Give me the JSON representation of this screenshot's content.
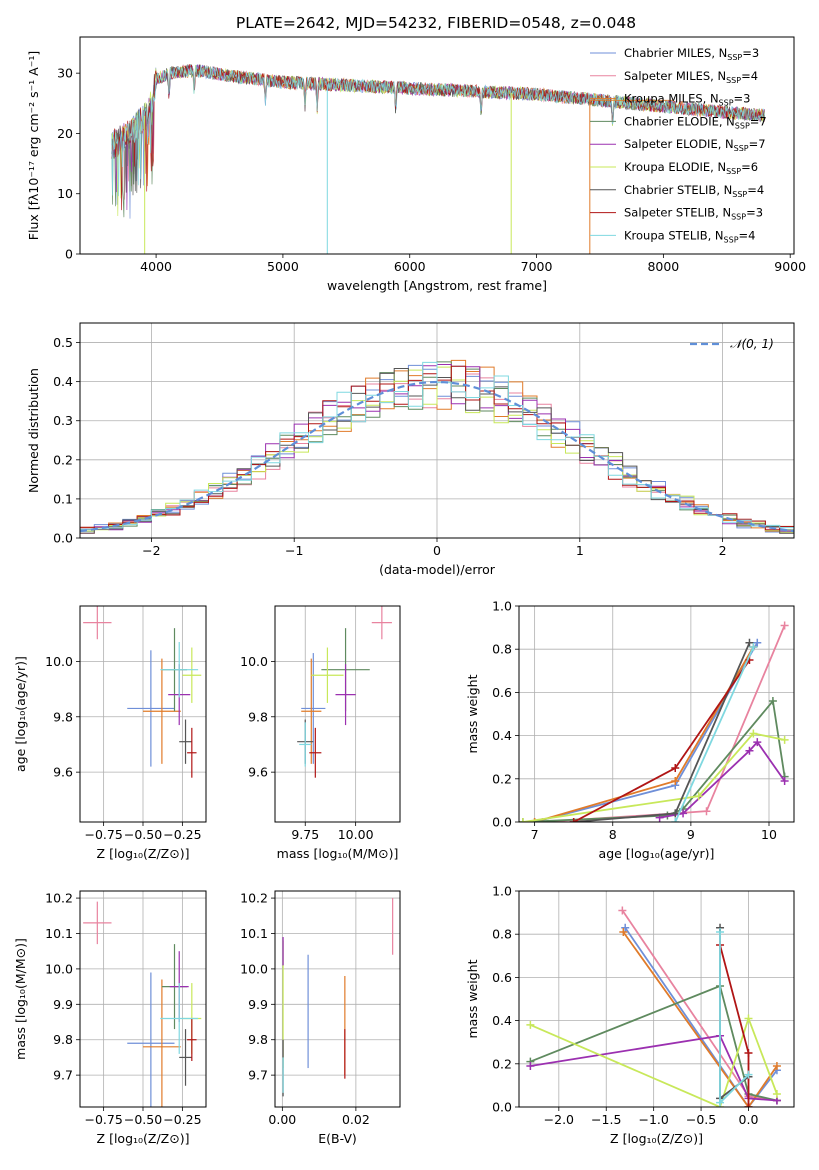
{
  "figure_title": "PLATE=2642, MJD=54232, FIBERID=0548, z=0.048",
  "colors": {
    "chabrier_miles": "#6f8fd8",
    "salpeter_miles": "#e8839f",
    "kroupa_miles": "#e07b2a",
    "chabrier_elodie": "#5f8a5f",
    "salpeter_elodie": "#9b30b0",
    "kroupa_elodie": "#c8e85a",
    "chabrier_stelib": "#555555",
    "salpeter_stelib": "#b01515",
    "kroupa_stelib": "#7fd8e0"
  },
  "chart_data": [
    {
      "id": "spectrum",
      "type": "line",
      "xlabel": "wavelength [Angstrom, rest frame]",
      "ylabel": "Flux [fλ10⁻¹⁷ erg cm⁻² s⁻¹ A⁻¹]",
      "xlim": [
        3400,
        9030
      ],
      "ylim": [
        0,
        36
      ],
      "xticks": [
        4000,
        5000,
        6000,
        7000,
        8000,
        9000
      ],
      "yticks": [
        0,
        10,
        20,
        30
      ],
      "legend_position": "top-right",
      "legend": [
        {
          "label": "Chabrier MILES, N",
          "sub": "SSP",
          "val": "=3",
          "color": "#6f8fd8"
        },
        {
          "label": "Salpeter MILES, N",
          "sub": "SSP",
          "val": "=4",
          "color": "#e8839f"
        },
        {
          "label": "Kroupa MILES, N",
          "sub": "SSP",
          "val": "=3",
          "color": "#e07b2a"
        },
        {
          "label": "Chabrier ELODIE, N",
          "sub": "SSP",
          "val": "=7",
          "color": "#5f8a5f"
        },
        {
          "label": "Salpeter ELODIE, N",
          "sub": "SSP",
          "val": "=7",
          "color": "#9b30b0"
        },
        {
          "label": "Kroupa ELODIE, N",
          "sub": "SSP",
          "val": "=6",
          "color": "#c8e85a"
        },
        {
          "label": "Chabrier STELIB, N",
          "sub": "SSP",
          "val": "=4",
          "color": "#555555"
        },
        {
          "label": "Salpeter STELIB, N",
          "sub": "SSP",
          "val": "=3",
          "color": "#b01515"
        },
        {
          "label": "Kroupa STELIB, N",
          "sub": "SSP",
          "val": "=4",
          "color": "#7fd8e0"
        }
      ],
      "spectrum_range": [
        3650,
        8800
      ],
      "continuum": [
        [
          3650,
          18
        ],
        [
          3800,
          20
        ],
        [
          3950,
          24
        ],
        [
          4000,
          29
        ],
        [
          4100,
          30
        ],
        [
          4300,
          30.5
        ],
        [
          4600,
          29.5
        ],
        [
          5000,
          28.5
        ],
        [
          5500,
          28
        ],
        [
          6000,
          27.5
        ],
        [
          6500,
          27
        ],
        [
          7000,
          26.5
        ],
        [
          7500,
          25.5
        ],
        [
          8000,
          24.5
        ],
        [
          8500,
          23.5
        ],
        [
          8800,
          23
        ]
      ],
      "dropouts": [
        {
          "x": 3910,
          "y": 0,
          "color": "#c8e85a"
        },
        {
          "x": 5350,
          "y": 0,
          "color": "#7fd8e0"
        },
        {
          "x": 6800,
          "y": 0,
          "color": "#c8e85a"
        },
        {
          "x": 7420,
          "y": 0,
          "color": "#e07b2a"
        }
      ]
    },
    {
      "id": "residuals",
      "type": "bar",
      "xlabel": "(data-model)/error",
      "ylabel": "Normed distribution",
      "xlim": [
        -2.5,
        2.5
      ],
      "ylim": [
        0,
        0.55
      ],
      "xticks": [
        -2,
        -1,
        0,
        1,
        2
      ],
      "yticks": [
        0.0,
        0.1,
        0.2,
        0.3,
        0.4,
        0.5
      ],
      "grid": true,
      "bin_width": 0.1,
      "bin_start": -2.5,
      "legend_position": "top-right",
      "gaussian": {
        "label": "𝒩(0, 1)",
        "mean": 0,
        "sigma": 1,
        "color": "#5f8fd8"
      },
      "histograms": [
        {
          "color": "#6f8fd8",
          "seed": 1
        },
        {
          "color": "#e8839f",
          "seed": 2
        },
        {
          "color": "#e07b2a",
          "seed": 3
        },
        {
          "color": "#5f8a5f",
          "seed": 4
        },
        {
          "color": "#9b30b0",
          "seed": 5
        },
        {
          "color": "#c8e85a",
          "seed": 6
        },
        {
          "color": "#555555",
          "seed": 7
        },
        {
          "color": "#b01515",
          "seed": 8
        },
        {
          "color": "#7fd8e0",
          "seed": 9
        }
      ]
    },
    {
      "id": "age_vs_z",
      "type": "scatter",
      "xlabel": "Z [log₁₀(Z/Z⊙)]",
      "ylabel": "age  [log₁₀(age/yr)]",
      "xlim": [
        -0.9,
        -0.1
      ],
      "ylim": [
        9.42,
        10.2
      ],
      "xticks": [
        -0.75,
        -0.5,
        -0.25
      ],
      "xticklabels": [
        "−0.75",
        "−0.50",
        "−0.25"
      ],
      "yticks": [
        9.6,
        9.8,
        10.0
      ],
      "grid": true,
      "points": [
        {
          "x": -0.79,
          "y": 10.14,
          "dx": 0.09,
          "dy": 0.06,
          "color": "#e8839f"
        },
        {
          "x": -0.45,
          "y": 9.83,
          "dx": 0.15,
          "dy": 0.21,
          "color": "#6f8fd8"
        },
        {
          "x": -0.38,
          "y": 9.82,
          "dx": 0.12,
          "dy": 0.19,
          "color": "#e07b2a"
        },
        {
          "x": -0.3,
          "y": 9.97,
          "dx": 0.08,
          "dy": 0.15,
          "color": "#5f8a5f"
        },
        {
          "x": -0.27,
          "y": 9.88,
          "dx": 0.07,
          "dy": 0.11,
          "color": "#9b30b0"
        },
        {
          "x": -0.19,
          "y": 9.95,
          "dx": 0.06,
          "dy": 0.1,
          "color": "#c8e85a"
        },
        {
          "x": -0.23,
          "y": 9.71,
          "dx": 0.04,
          "dy": 0.08,
          "color": "#555555"
        },
        {
          "x": -0.19,
          "y": 9.67,
          "dx": 0.03,
          "dy": 0.09,
          "color": "#b01515"
        },
        {
          "x": -0.27,
          "y": 9.97,
          "dx": 0.12,
          "dy": 0.1,
          "color": "#7fd8e0"
        }
      ]
    },
    {
      "id": "age_vs_mass",
      "type": "scatter",
      "xlabel": "mass [log₁₀(M/M⊙)]",
      "ylabel": "",
      "xlim": [
        9.6,
        10.22
      ],
      "ylim": [
        9.42,
        10.2
      ],
      "xticks": [
        9.75,
        10.0
      ],
      "xticklabels": [
        "9.75",
        "10.00"
      ],
      "yticks": [
        9.6,
        9.8,
        10.0
      ],
      "grid": true,
      "points": [
        {
          "x": 10.13,
          "y": 10.14,
          "dx": 0.05,
          "dy": 0.06,
          "color": "#e8839f"
        },
        {
          "x": 9.79,
          "y": 9.83,
          "dx": 0.06,
          "dy": 0.2,
          "color": "#6f8fd8"
        },
        {
          "x": 9.78,
          "y": 9.82,
          "dx": 0.05,
          "dy": 0.19,
          "color": "#e07b2a"
        },
        {
          "x": 9.95,
          "y": 9.97,
          "dx": 0.12,
          "dy": 0.15,
          "color": "#5f8a5f"
        },
        {
          "x": 9.95,
          "y": 9.88,
          "dx": 0.05,
          "dy": 0.11,
          "color": "#9b30b0"
        },
        {
          "x": 9.86,
          "y": 9.95,
          "dx": 0.08,
          "dy": 0.1,
          "color": "#c8e85a"
        },
        {
          "x": 9.75,
          "y": 9.71,
          "dx": 0.04,
          "dy": 0.08,
          "color": "#555555"
        },
        {
          "x": 9.8,
          "y": 9.67,
          "dx": 0.03,
          "dy": 0.09,
          "color": "#b01515"
        },
        {
          "x": 9.75,
          "y": 9.7,
          "dx": 0.03,
          "dy": 0.08,
          "color": "#7fd8e0"
        }
      ]
    },
    {
      "id": "weight_vs_age",
      "type": "line",
      "xlabel": "age  [log₁₀(age/yr)]",
      "ylabel": "mass weight",
      "xlim": [
        6.8,
        10.32
      ],
      "ylim": [
        0,
        1.0
      ],
      "xticks": [
        7,
        8,
        9,
        10
      ],
      "yticks": [
        0.0,
        0.2,
        0.4,
        0.6,
        0.8,
        1.0
      ],
      "grid": true,
      "series": [
        {
          "color": "#6f8fd8",
          "points": [
            [
              7.0,
              0.0
            ],
            [
              8.8,
              0.17
            ],
            [
              9.85,
              0.83
            ]
          ]
        },
        {
          "color": "#e8839f",
          "points": [
            [
              7.1,
              0.0
            ],
            [
              8.8,
              0.04
            ],
            [
              9.2,
              0.05
            ],
            [
              10.2,
              0.91
            ]
          ]
        },
        {
          "color": "#e07b2a",
          "points": [
            [
              7.0,
              0.0
            ],
            [
              8.8,
              0.19
            ],
            [
              9.8,
              0.81
            ]
          ]
        },
        {
          "color": "#5f8a5f",
          "points": [
            [
              6.85,
              0.0
            ],
            [
              8.7,
              0.03
            ],
            [
              8.9,
              0.06
            ],
            [
              10.05,
              0.56
            ],
            [
              10.2,
              0.21
            ]
          ]
        },
        {
          "color": "#9b30b0",
          "points": [
            [
              8.6,
              0.02
            ],
            [
              8.9,
              0.04
            ],
            [
              9.75,
              0.33
            ],
            [
              9.85,
              0.37
            ],
            [
              10.2,
              0.19
            ]
          ]
        },
        {
          "color": "#c8e85a",
          "points": [
            [
              6.85,
              0.0
            ],
            [
              9.1,
              0.12
            ],
            [
              9.8,
              0.41
            ],
            [
              10.2,
              0.38
            ]
          ]
        },
        {
          "color": "#555555",
          "points": [
            [
              7.5,
              0.0
            ],
            [
              8.8,
              0.04
            ],
            [
              9.75,
              0.83
            ]
          ]
        },
        {
          "color": "#b01515",
          "points": [
            [
              7.5,
              0.0
            ],
            [
              8.8,
              0.25
            ],
            [
              9.75,
              0.75
            ]
          ]
        },
        {
          "color": "#7fd8e0",
          "points": [
            [
              8.8,
              0.0
            ],
            [
              9.8,
              0.81
            ]
          ]
        }
      ]
    },
    {
      "id": "mass_vs_z",
      "type": "scatter",
      "xlabel": "Z [log₁₀(Z/Z⊙)]",
      "ylabel": "mass [log₁₀(M/M⊙)]",
      "xlim": [
        -0.9,
        -0.1
      ],
      "ylim": [
        9.61,
        10.22
      ],
      "xticks": [
        -0.75,
        -0.5,
        -0.25
      ],
      "xticklabels": [
        "−0.75",
        "−0.50",
        "−0.25"
      ],
      "yticks": [
        9.7,
        9.8,
        9.9,
        10.0,
        10.1,
        10.2
      ],
      "grid": true,
      "points": [
        {
          "x": -0.79,
          "y": 10.13,
          "dx": 0.09,
          "dy": 0.06,
          "color": "#e8839f"
        },
        {
          "x": -0.45,
          "y": 9.79,
          "dx": 0.15,
          "dy": 0.2,
          "color": "#6f8fd8"
        },
        {
          "x": -0.38,
          "y": 9.78,
          "dx": 0.12,
          "dy": 0.19,
          "color": "#e07b2a"
        },
        {
          "x": -0.3,
          "y": 9.95,
          "dx": 0.08,
          "dy": 0.12,
          "color": "#5f8a5f"
        },
        {
          "x": -0.27,
          "y": 9.95,
          "dx": 0.06,
          "dy": 0.1,
          "color": "#9b30b0"
        },
        {
          "x": -0.19,
          "y": 9.86,
          "dx": 0.06,
          "dy": 0.1,
          "color": "#c8e85a"
        },
        {
          "x": -0.23,
          "y": 9.75,
          "dx": 0.04,
          "dy": 0.08,
          "color": "#555555"
        },
        {
          "x": -0.19,
          "y": 9.8,
          "dx": 0.03,
          "dy": 0.06,
          "color": "#b01515"
        },
        {
          "x": -0.27,
          "y": 9.86,
          "dx": 0.12,
          "dy": 0.1,
          "color": "#7fd8e0"
        }
      ]
    },
    {
      "id": "mass_vs_ebv",
      "type": "scatter",
      "xlabel": "E(B-V)",
      "ylabel": "",
      "xlim": [
        -0.002,
        0.032
      ],
      "ylim": [
        9.61,
        10.22
      ],
      "xticks": [
        0.0,
        0.02
      ],
      "xticklabels": [
        "0.00",
        "0.02"
      ],
      "yticks": [
        9.7,
        9.8,
        9.9,
        10.0,
        10.1,
        10.2
      ],
      "grid": true,
      "points": [
        {
          "x": 0.03,
          "y": 10.12,
          "dx": 0,
          "dy": 0.08,
          "color": "#e8839f"
        },
        {
          "x": 0.007,
          "y": 9.88,
          "dx": 0,
          "dy": 0.16,
          "color": "#6f8fd8"
        },
        {
          "x": 0.017,
          "y": 9.84,
          "dx": 0,
          "dy": 0.14,
          "color": "#e07b2a"
        },
        {
          "x": 0.0002,
          "y": 9.9,
          "dx": 0,
          "dy": 0.18,
          "color": "#c8e85a"
        },
        {
          "x": 0.0002,
          "y": 10.05,
          "dx": 0,
          "dy": 0.04,
          "color": "#9b30b0"
        },
        {
          "x": 0.0002,
          "y": 9.72,
          "dx": 0,
          "dy": 0.08,
          "color": "#555555"
        },
        {
          "x": 0.017,
          "y": 9.76,
          "dx": 0,
          "dy": 0.07,
          "color": "#b01515"
        },
        {
          "x": 0.0002,
          "y": 9.7,
          "dx": 0,
          "dy": 0.05,
          "color": "#7fd8e0"
        }
      ]
    },
    {
      "id": "weight_vs_z",
      "type": "line",
      "xlabel": "Z [log₁₀(Z/Z⊙)]",
      "ylabel": "mass weight",
      "xlim": [
        -2.42,
        0.48
      ],
      "ylim": [
        0,
        1.0
      ],
      "xticks": [
        -2.0,
        -1.5,
        -1.0,
        -0.5,
        0.0
      ],
      "xticklabels": [
        "−2.0",
        "−1.5",
        "−1.0",
        "−0.5",
        "0.0"
      ],
      "yticks": [
        0.0,
        0.2,
        0.4,
        0.6,
        0.8,
        1.0
      ],
      "grid": true,
      "series": [
        {
          "color": "#6f8fd8",
          "points": [
            [
              -1.3,
              0.83
            ],
            [
              0.0,
              0.0
            ],
            [
              0.3,
              0.17
            ]
          ]
        },
        {
          "color": "#e8839f",
          "points": [
            [
              -1.33,
              0.91
            ],
            [
              0.0,
              0.05
            ],
            [
              0.3,
              0.03
            ]
          ]
        },
        {
          "color": "#e07b2a",
          "points": [
            [
              -1.32,
              0.81
            ],
            [
              0.0,
              0.0
            ],
            [
              0.3,
              0.19
            ]
          ]
        },
        {
          "color": "#5f8a5f",
          "points": [
            [
              -2.3,
              0.21
            ],
            [
              -0.3,
              0.56
            ],
            [
              0.0,
              0.06
            ],
            [
              0.3,
              0.03
            ]
          ]
        },
        {
          "color": "#9b30b0",
          "points": [
            [
              -2.3,
              0.19
            ],
            [
              -0.3,
              0.33
            ],
            [
              0.0,
              0.04
            ],
            [
              0.3,
              0.03
            ]
          ]
        },
        {
          "color": "#c8e85a",
          "points": [
            [
              -2.3,
              0.38
            ],
            [
              -0.3,
              0.0
            ],
            [
              0.0,
              0.41
            ],
            [
              0.3,
              0.06
            ]
          ]
        },
        {
          "color": "#555555",
          "points": [
            [
              -0.3,
              0.83
            ],
            [
              -0.3,
              0.04
            ],
            [
              0.0,
              0.14
            ]
          ]
        },
        {
          "color": "#b01515",
          "points": [
            [
              -0.3,
              0.75
            ],
            [
              0.0,
              0.25
            ],
            [
              0.0,
              0.0
            ]
          ]
        },
        {
          "color": "#7fd8e0",
          "points": [
            [
              -0.3,
              0.81
            ],
            [
              -0.3,
              0.02
            ],
            [
              0.0,
              0.15
            ]
          ]
        }
      ]
    }
  ]
}
